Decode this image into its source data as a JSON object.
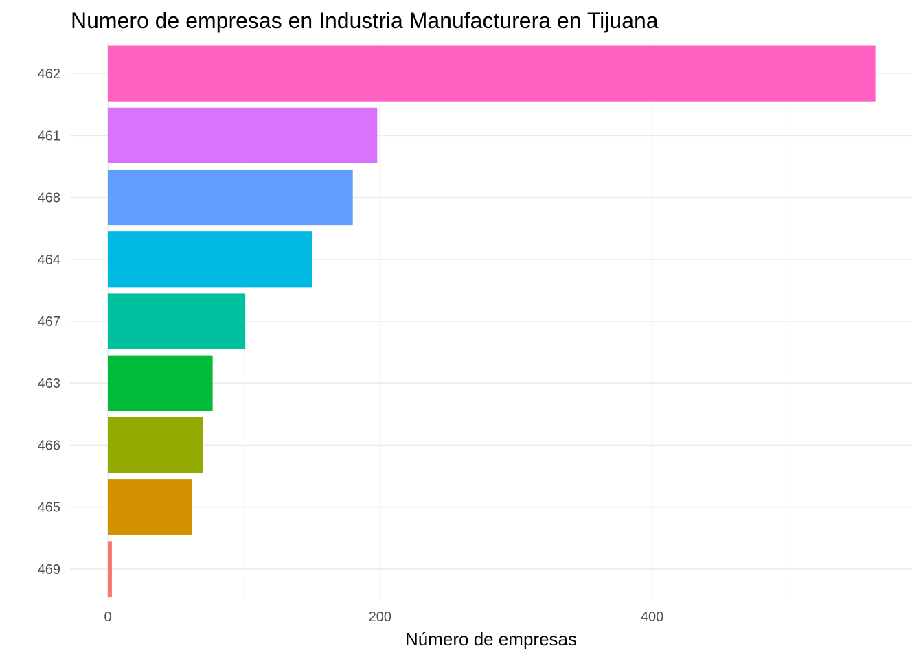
{
  "chart_data": {
    "type": "bar",
    "orientation": "horizontal",
    "title": "Numero de empresas en Industria Manufacturera en Tijuana",
    "xlabel": "Número de empresas",
    "ylabel": "",
    "xlim": [
      0,
      570
    ],
    "x_ticks": [
      0,
      200,
      400
    ],
    "x_minor_ticks": [
      100,
      300,
      500
    ],
    "grid": true,
    "legend": "none",
    "categories": [
      "462",
      "461",
      "468",
      "464",
      "467",
      "463",
      "466",
      "465",
      "469"
    ],
    "values": [
      564,
      198,
      180,
      150,
      101,
      77,
      70,
      62,
      3
    ],
    "colors": [
      "#FF61C3",
      "#DB72FB",
      "#619CFF",
      "#00B9E3",
      "#00C19F",
      "#00BA38",
      "#93AA00",
      "#D39200",
      "#F8766D"
    ]
  }
}
